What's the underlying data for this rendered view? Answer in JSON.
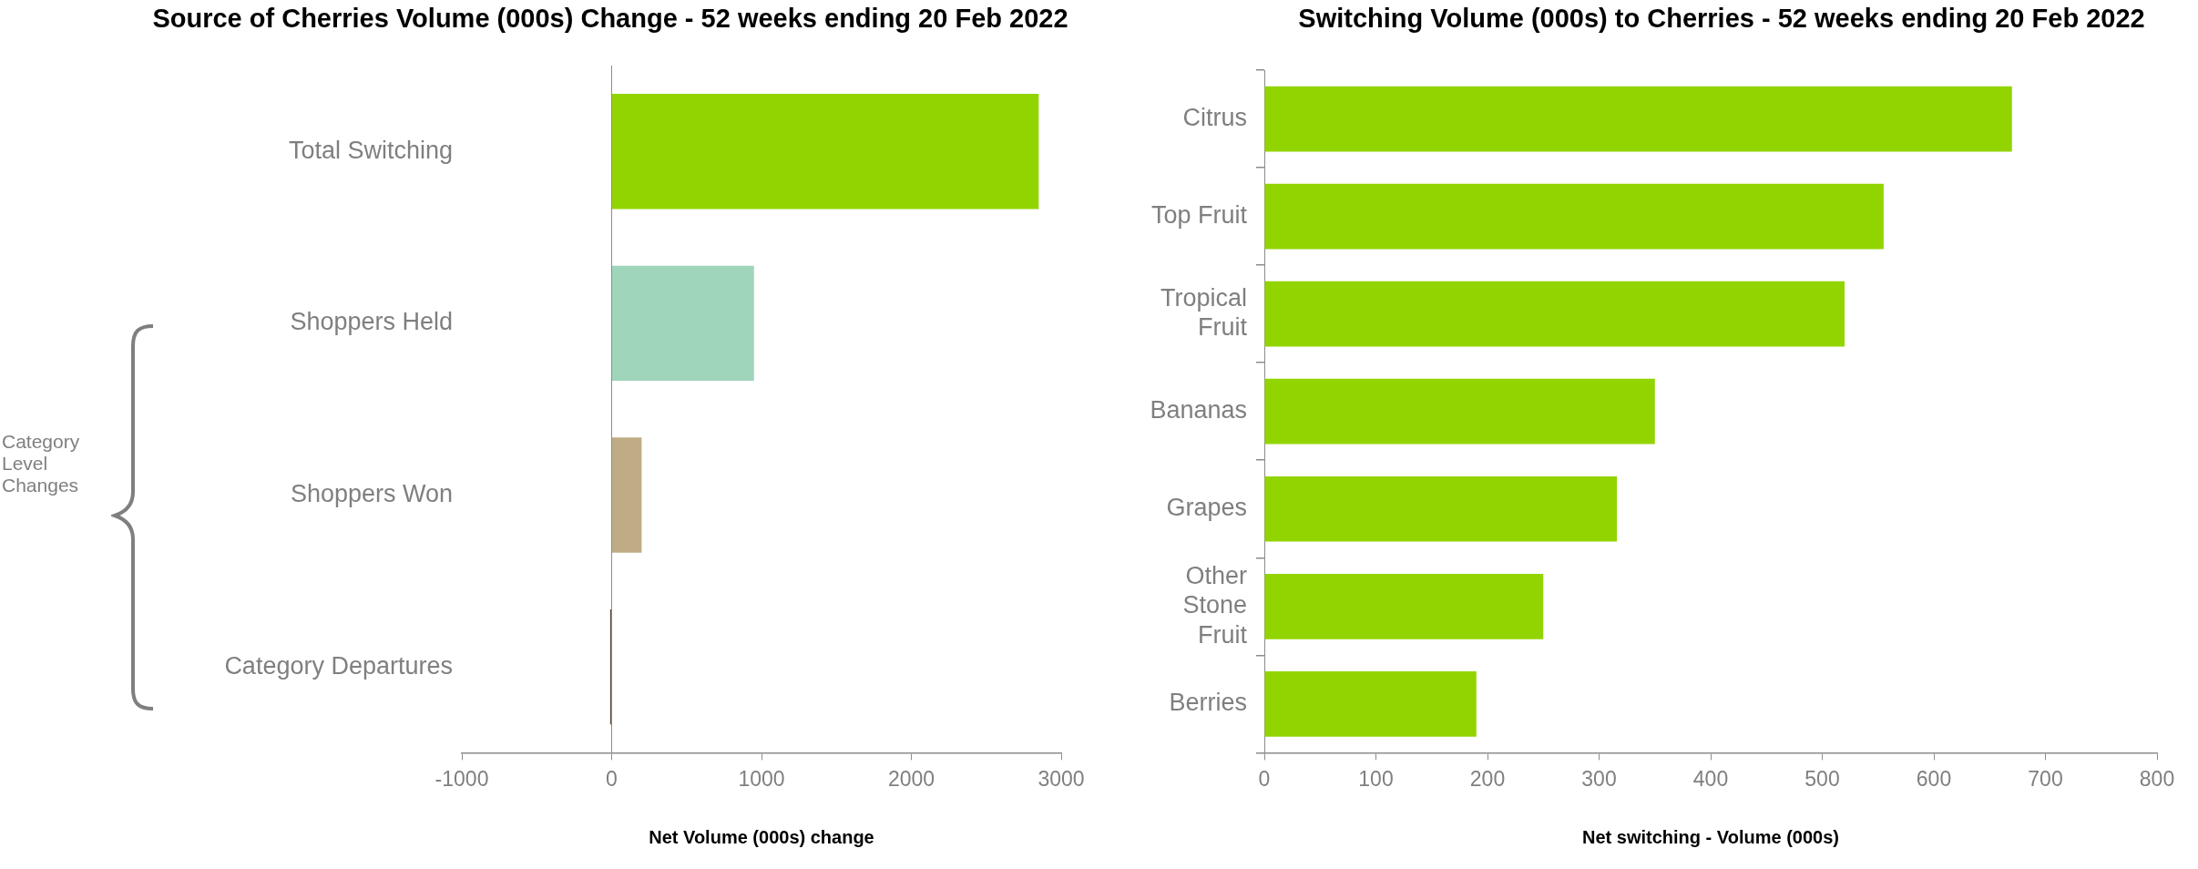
{
  "chart_data": [
    {
      "type": "bar",
      "orientation": "horizontal",
      "title": "Source of Cherries Volume (000s) Change - 52 weeks ending 20 Feb 2022",
      "xlabel": "Net Volume (000s) change",
      "categories": [
        "Total Switching",
        "Shoppers Held",
        "Shoppers Won",
        "Category Departures"
      ],
      "values": [
        2850,
        950,
        200,
        -10
      ],
      "colors": [
        "#92d400",
        "#9fd5bb",
        "#bfac84",
        "#5c4d3c"
      ],
      "xlim": [
        -1000,
        3000
      ],
      "xticks": [
        -1000,
        0,
        1000,
        2000,
        3000
      ],
      "annotations": [
        "Category Level Changes"
      ]
    },
    {
      "type": "bar",
      "orientation": "horizontal",
      "title": "Switching Volume (000s) to Cherries - 52 weeks ending 20 Feb 2022",
      "xlabel": "Net switching - Volume (000s)",
      "categories": [
        "Citrus",
        "Top Fruit",
        "Tropical Fruit",
        "Bananas",
        "Grapes",
        "Other Stone Fruit",
        "Berries"
      ],
      "values": [
        670,
        555,
        520,
        350,
        316,
        250,
        190
      ],
      "color": "#92d400",
      "xlim": [
        0,
        800
      ],
      "xticks": [
        0,
        100,
        200,
        300,
        400,
        500,
        600,
        700,
        800
      ]
    }
  ]
}
